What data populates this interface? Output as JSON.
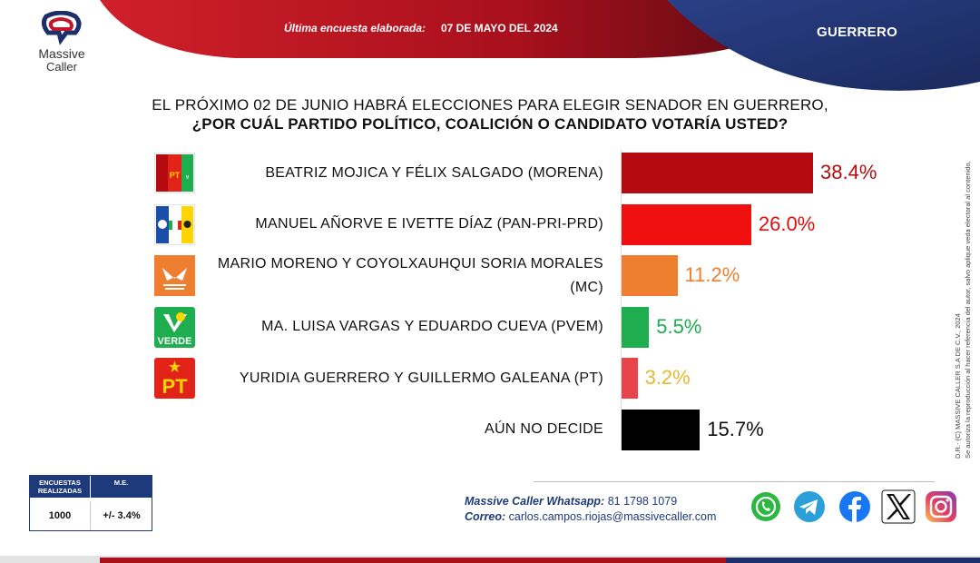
{
  "header": {
    "logo_line1": "Massive",
    "logo_line2": "Caller",
    "survey_label": "Última encuesta elaborada:",
    "survey_date": "07 DE MAYO DEL 2024",
    "state": "GUERRERO"
  },
  "question": {
    "line1": "EL PRÓXIMO 02 DE JUNIO HABRÁ ELECCIONES PARA ELEGIR SENADOR EN GUERRERO,",
    "line2": "¿POR CUÁL PARTIDO POLÍTICO, COALICIÓN O CANDIDATO VOTARÍA USTED?"
  },
  "chart_data": {
    "type": "bar",
    "orientation": "horizontal",
    "categories": [
      "BEATRIZ MOJICA Y FÉLIX SALGADO (MORENA)",
      "MANUEL AÑORVE E IVETTE DÍAZ (PAN-PRI-PRD)",
      "MARIO MORENO Y COYOLXAUHQUI SORIA MORALES (MC)",
      "MA. LUISA VARGAS Y EDUARDO CUEVA (PVEM)",
      "YURIDIA GUERRERO Y GUILLERMO GALEANA (PT)",
      "AÚN NO DECIDE"
    ],
    "label_lines": [
      [
        "BEATRIZ MOJICA Y FÉLIX SALGADO (MORENA)"
      ],
      [
        "MANUEL AÑORVE E IVETTE DÍAZ (PAN-PRI-PRD)"
      ],
      [
        "MARIO MORENO Y COYOLXAUHQUI SORIA MORALES",
        "(MC)"
      ],
      [
        "MA. LUISA VARGAS Y EDUARDO CUEVA (PVEM)"
      ],
      [
        "YURIDIA GUERRERO Y GUILLERMO GALEANA (PT)"
      ],
      [
        "AÚN NO DECIDE"
      ]
    ],
    "values": [
      38.4,
      26.0,
      11.2,
      5.5,
      3.2,
      15.7
    ],
    "value_labels": [
      "38.4%",
      "26.0%",
      "11.2%",
      "5.5%",
      "3.2%",
      "15.7%"
    ],
    "bar_colors": [
      "#b50b10",
      "#f01010",
      "#ee7f31",
      "#1ead4f",
      "#e8444c",
      "#000000"
    ],
    "value_colors": [
      "#b50b10",
      "#e01010",
      "#ee7f31",
      "#1ead4f",
      "#e8b830",
      "#111111"
    ],
    "icons": [
      "morena-pt-pvem-coalition-icon",
      "pan-pri-prd-coalition-icon",
      "movimiento-ciudadano-icon",
      "verde-icon",
      "pt-icon",
      ""
    ],
    "xlim": [
      0,
      38.4
    ]
  },
  "table": {
    "headers": [
      "ENCUESTAS REALIZADAS",
      "M.E."
    ],
    "values": [
      "1000",
      "+/- 3.4%"
    ]
  },
  "contact": {
    "whatsapp_label": "Massive Caller Whatsapp:",
    "whatsapp_number": "81 1798 1079",
    "email_label": "Correo:",
    "email": "carlos.campos.riojas@massivecaller.com"
  },
  "social": [
    "whatsapp-icon",
    "telegram-icon",
    "facebook-icon",
    "x-icon",
    "instagram-icon"
  ],
  "copyright": {
    "line1": "D.R.- (C) MASSIVE CALLER S.A DE C.V., 2024",
    "line2": "Se autoriza la reproducción al hacer referencia del autor, salvo aplique veda electoral al contenido."
  },
  "colors": {
    "red": "#a8101c",
    "navy": "#1d2f6b"
  }
}
